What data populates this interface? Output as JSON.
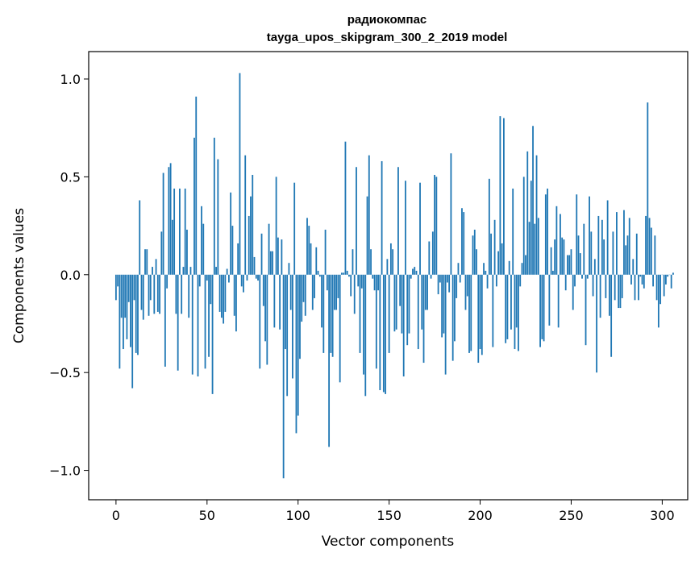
{
  "chart_data": {
    "type": "bar",
    "title": "радиокомпас",
    "subtitle": "tayga_upos_skipgram_300_2_2019 model",
    "xlabel": "Vector components",
    "ylabel": "Components values",
    "xlim": [
      -15,
      314
    ],
    "ylim": [
      -1.15,
      1.14
    ],
    "bar_color": "#1f77b4",
    "x_ticks": [
      0,
      50,
      100,
      150,
      200,
      250,
      300
    ],
    "x_tick_labels": [
      "0",
      "50",
      "100",
      "150",
      "200",
      "250",
      "300"
    ],
    "y_ticks": [
      -1.0,
      -0.5,
      0.0,
      0.5,
      1.0
    ],
    "y_tick_labels": [
      "−1.0",
      "−0.5",
      "0.0",
      "0.5",
      "1.0"
    ],
    "values": [
      -0.13,
      -0.06,
      -0.48,
      -0.22,
      -0.38,
      -0.22,
      -0.33,
      -0.14,
      -0.37,
      -0.58,
      -0.13,
      -0.4,
      -0.41,
      0.38,
      -0.18,
      -0.23,
      0.13,
      0.13,
      -0.21,
      -0.13,
      0.04,
      -0.2,
      0.08,
      -0.19,
      -0.2,
      0.22,
      0.52,
      -0.47,
      -0.07,
      0.55,
      0.57,
      0.28,
      0.44,
      -0.2,
      -0.49,
      0.44,
      -0.2,
      0.04,
      0.44,
      0.23,
      -0.22,
      0.04,
      -0.51,
      0.7,
      0.91,
      -0.52,
      -0.06,
      0.35,
      0.26,
      -0.48,
      -0.03,
      -0.42,
      -0.15,
      -0.61,
      0.7,
      0.04,
      0.59,
      -0.19,
      -0.22,
      -0.25,
      -0.19,
      0.03,
      -0.04,
      0.42,
      0.25,
      -0.21,
      -0.29,
      0.16,
      1.03,
      -0.06,
      -0.09,
      0.61,
      -0.03,
      0.3,
      0.4,
      0.51,
      0.09,
      -0.02,
      -0.03,
      -0.48,
      0.21,
      -0.16,
      -0.34,
      -0.46,
      0.26,
      0.12,
      0.12,
      -0.27,
      0.5,
      0.19,
      -0.28,
      0.18,
      -1.04,
      -0.38,
      -0.62,
      0.06,
      -0.18,
      -0.53,
      0.47,
      -0.81,
      -0.72,
      -0.43,
      -0.24,
      -0.14,
      -0.21,
      0.29,
      0.25,
      0.16,
      -0.18,
      -0.12,
      0.14,
      0.02,
      -0.01,
      -0.27,
      -0.4,
      0.23,
      -0.08,
      -0.88,
      -0.4,
      -0.42,
      -0.18,
      -0.18,
      -0.12,
      -0.55,
      0.01,
      0.01,
      0.68,
      0.02,
      -0.01,
      -0.11,
      0.13,
      -0.2,
      0.55,
      -0.06,
      -0.4,
      -0.07,
      -0.51,
      -0.62,
      0.4,
      0.61,
      0.13,
      -0.02,
      -0.08,
      -0.48,
      -0.08,
      -0.59,
      0.58,
      -0.6,
      -0.61,
      0.08,
      -0.4,
      0.16,
      0.13,
      -0.29,
      -0.28,
      0.55,
      -0.16,
      -0.3,
      -0.52,
      0.48,
      -0.36,
      -0.3,
      -0.02,
      0.03,
      0.04,
      0.02,
      -0.38,
      0.47,
      -0.28,
      -0.45,
      -0.18,
      -0.18,
      0.17,
      -0.02,
      0.22,
      0.51,
      0.5,
      -0.1,
      -0.04,
      -0.32,
      -0.3,
      -0.51,
      -0.04,
      -0.09,
      0.62,
      -0.44,
      -0.34,
      -0.12,
      0.06,
      -0.04,
      0.34,
      0.32,
      -0.18,
      -0.11,
      -0.4,
      -0.39,
      0.2,
      0.23,
      0.13,
      -0.45,
      -0.38,
      -0.41,
      0.06,
      0.02,
      -0.07,
      0.49,
      0.21,
      -0.37,
      0.28,
      -0.06,
      0.12,
      0.81,
      0.16,
      0.8,
      -0.35,
      -0.33,
      0.07,
      -0.28,
      0.44,
      -0.38,
      -0.27,
      -0.39,
      -0.06,
      0.06,
      0.5,
      0.1,
      0.63,
      0.27,
      0.48,
      0.76,
      0.26,
      0.61,
      0.29,
      -0.37,
      -0.33,
      -0.34,
      0.41,
      0.44,
      -0.26,
      0.14,
      0.02,
      0.18,
      0.35,
      -0.27,
      0.31,
      0.19,
      0.18,
      -0.08,
      0.1,
      0.1,
      0.13,
      -0.18,
      -0.06,
      0.41,
      0.2,
      0.11,
      -0.02,
      0.26,
      -0.36,
      -0.02,
      0.4,
      0.22,
      -0.11,
      0.08,
      -0.5,
      0.3,
      -0.22,
      0.28,
      0.18,
      -0.12,
      0.38,
      -0.21,
      -0.42,
      0.22,
      -0.13,
      0.32,
      -0.17,
      -0.17,
      -0.12,
      0.33,
      0.15,
      0.2,
      0.29,
      -0.05,
      0.08,
      -0.13,
      0.21,
      -0.13,
      -0.01,
      -0.05,
      -0.07,
      0.3,
      0.88,
      0.29,
      0.24,
      -0.06,
      0.2,
      -0.13,
      -0.27,
      -0.15,
      0.0,
      -0.11,
      -0.05,
      -0.01,
      0.0,
      -0.07,
      0.01
    ]
  }
}
